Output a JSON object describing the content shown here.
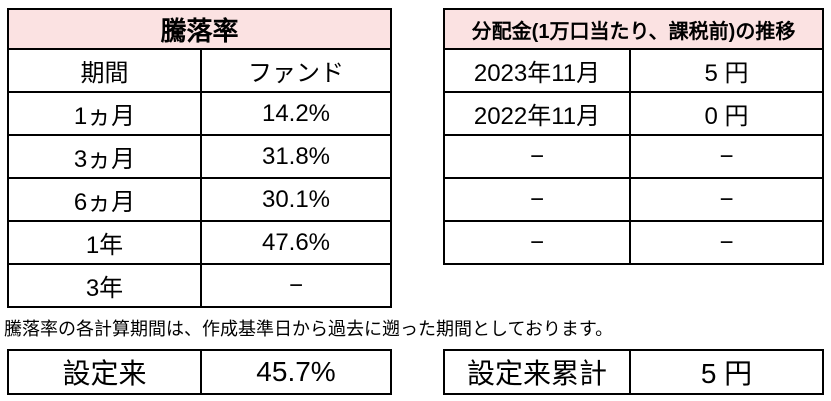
{
  "colors": {
    "header_bg": "#fbe2e2",
    "border": "#000000",
    "text": "#000000"
  },
  "perf_table": {
    "title": "騰落率",
    "col_headers": [
      "期間",
      "ファンド"
    ],
    "rows": [
      {
        "label": "1ヵ月",
        "value": "14.2%"
      },
      {
        "label": "3ヵ月",
        "value": "31.8%"
      },
      {
        "label": "6ヵ月",
        "value": "30.1%"
      },
      {
        "label": "1年",
        "value": "47.6%"
      },
      {
        "label": "3年",
        "value": "−"
      }
    ],
    "since_inception": {
      "label": "設定来",
      "value": "45.7%"
    }
  },
  "dist_table": {
    "title": "分配金(1万口当たり、課税前)の推移",
    "rows": [
      {
        "label": "2023年11月",
        "value": "5 円"
      },
      {
        "label": "2022年11月",
        "value": "0 円"
      },
      {
        "label": "−",
        "value": "−"
      },
      {
        "label": "−",
        "value": "−"
      },
      {
        "label": "−",
        "value": "−"
      }
    ],
    "cumulative": {
      "label": "設定来累計",
      "value": "5 円"
    }
  },
  "note": "騰落率の各計算期間は、作成基準日から過去に遡った期間としております。"
}
